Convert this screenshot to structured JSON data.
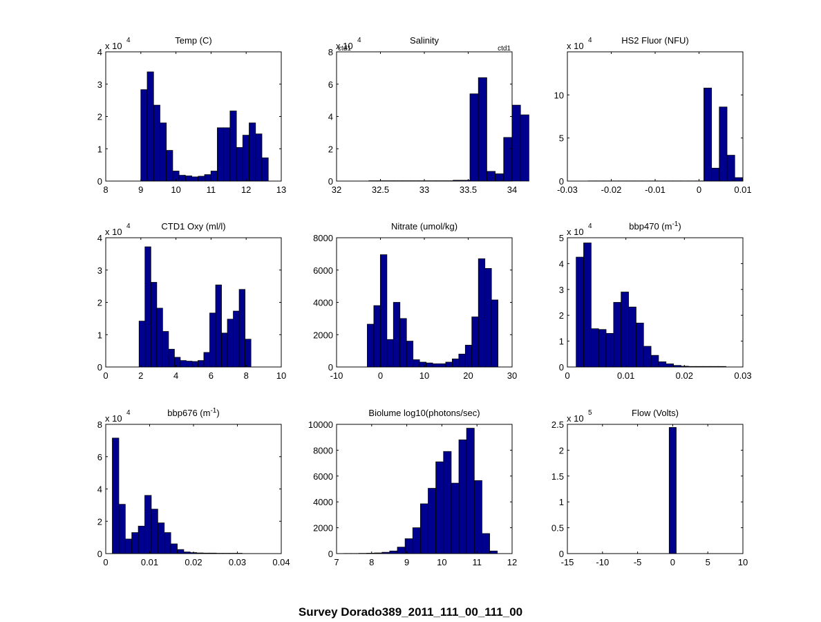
{
  "figure_title": "Survey Dorado389_2011_111_00_111_00",
  "style": {
    "bar_fill": "#00008f",
    "bar_edge": "#000000",
    "axis_color": "#000000",
    "background": "#ffffff"
  },
  "chart_data": [
    {
      "type": "bar",
      "title": "Temp (C)",
      "title_sup": "",
      "xlim": [
        8,
        13
      ],
      "xticks": [
        "8",
        "9",
        "10",
        "11",
        "12",
        "13"
      ],
      "ylim": [
        0,
        4
      ],
      "yticks": [
        "0",
        "1",
        "2",
        "3",
        "4"
      ],
      "exponent": "4",
      "bin_start": 9.0,
      "bin_width": 0.1815,
      "values": [
        2.83,
        3.38,
        2.35,
        1.8,
        0.95,
        0.31,
        0.18,
        0.16,
        0.13,
        0.15,
        0.2,
        0.31,
        1.65,
        1.65,
        2.17,
        1.04,
        1.42,
        1.8,
        1.46,
        0.72
      ],
      "annotations": []
    },
    {
      "type": "bar",
      "title": "Salinity",
      "title_sup": "",
      "xlim": [
        32,
        34
      ],
      "xticks": [
        "32",
        "32.5",
        "33",
        "33.5",
        "34"
      ],
      "ylim": [
        0,
        8
      ],
      "yticks": [
        "0",
        "2",
        "4",
        "6",
        "8"
      ],
      "exponent": "4",
      "bin_start": 32.08,
      "bin_width": 0.096,
      "values": [
        0,
        0,
        0,
        0.02,
        0.02,
        0.02,
        0.02,
        0.02,
        0.02,
        0.02,
        0.02,
        0.02,
        0.02,
        0.05,
        0.05,
        5.4,
        6.4,
        0.6,
        0.45,
        2.7,
        4.7,
        4.1
      ],
      "annotations": [
        "ctd1",
        "ctd1"
      ]
    },
    {
      "type": "bar",
      "title": "HS2 Fluor (NFU)",
      "title_sup": "",
      "xlim": [
        -0.03,
        0.01
      ],
      "xticks": [
        "-0.03",
        "-0.02",
        "-0.01",
        "0",
        "0.01"
      ],
      "ylim": [
        0,
        15
      ],
      "yticks": [
        "0",
        "5",
        "10"
      ],
      "exponent": "4",
      "bin_start": -0.0253,
      "bin_width": 0.00176,
      "values": [
        0.02,
        0.02,
        0.02,
        0.02,
        0.02,
        0.02,
        0.02,
        0.02,
        0.02,
        0.02,
        0.02,
        0.02,
        0.02,
        0.02,
        0.02,
        10.8,
        1.5,
        8.6,
        3.0,
        0.4
      ],
      "annotations": []
    },
    {
      "type": "bar",
      "title": "CTD1 Oxy (ml/l)",
      "title_sup": "",
      "xlim": [
        0,
        10
      ],
      "xticks": [
        "0",
        "2",
        "4",
        "6",
        "8",
        "10"
      ],
      "ylim": [
        0,
        4
      ],
      "yticks": [
        "0",
        "1",
        "2",
        "3",
        "4"
      ],
      "exponent": "4",
      "bin_start": 1.9,
      "bin_width": 0.3354,
      "values": [
        1.42,
        3.72,
        2.62,
        1.82,
        1.1,
        0.55,
        0.3,
        0.2,
        0.18,
        0.17,
        0.2,
        0.45,
        1.67,
        2.54,
        1.05,
        1.48,
        1.73,
        2.4,
        0.86
      ],
      "annotations": []
    },
    {
      "type": "bar",
      "title": "Nitrate (umol/kg)",
      "title_sup": "",
      "xlim": [
        -10,
        30
      ],
      "xticks": [
        "-10",
        "0",
        "10",
        "20",
        "30"
      ],
      "ylim": [
        0,
        8000
      ],
      "yticks": [
        "0",
        "2000",
        "4000",
        "6000",
        "8000"
      ],
      "exponent": "",
      "bin_start": -3.0,
      "bin_width": 1.4895,
      "values": [
        2650,
        3800,
        6950,
        1700,
        4000,
        3000,
        1600,
        450,
        300,
        250,
        200,
        200,
        300,
        500,
        800,
        1350,
        3100,
        6700,
        6100,
        4150
      ],
      "annotations": []
    },
    {
      "type": "bar",
      "title": "bbp470 (m",
      "title_sup": "-1",
      "title_tail": ")",
      "xlim": [
        0,
        0.03
      ],
      "xticks": [
        "0",
        "0.01",
        "0.02",
        "0.03"
      ],
      "ylim": [
        0,
        5
      ],
      "yticks": [
        "0",
        "1",
        "2",
        "3",
        "4",
        "5"
      ],
      "exponent": "4",
      "bin_start": 0.0015,
      "bin_width": 0.00128,
      "values": [
        4.25,
        4.8,
        1.48,
        1.45,
        1.3,
        2.5,
        2.9,
        2.32,
        1.7,
        0.8,
        0.45,
        0.2,
        0.12,
        0.06,
        0.03,
        0.02,
        0.02,
        0.02,
        0.02,
        0.02
      ],
      "annotations": []
    },
    {
      "type": "bar",
      "title": "bbp676 (m",
      "title_sup": "-1",
      "title_tail": ")",
      "xlim": [
        0,
        0.04
      ],
      "xticks": [
        "0",
        "0.01",
        "0.02",
        "0.03",
        "0.04"
      ],
      "ylim": [
        0,
        8
      ],
      "yticks": [
        "0",
        "2",
        "4",
        "6",
        "8"
      ],
      "exponent": "4",
      "bin_start": 0.0015,
      "bin_width": 0.00148,
      "values": [
        7.15,
        3.05,
        0.9,
        1.3,
        1.7,
        3.6,
        2.75,
        1.9,
        1.3,
        0.6,
        0.25,
        0.1,
        0.06,
        0.04,
        0.03,
        0.03,
        0.02,
        0.02,
        0.02,
        0.02
      ],
      "annotations": []
    },
    {
      "type": "bar",
      "title": "Biolume log10(photons/sec)",
      "title_sup": "",
      "xlim": [
        7,
        12
      ],
      "xticks": [
        "7",
        "8",
        "9",
        "10",
        "11",
        "12"
      ],
      "ylim": [
        0,
        10000
      ],
      "yticks": [
        "0",
        "2000",
        "4000",
        "6000",
        "8000",
        "10000"
      ],
      "exponent": "",
      "bin_start": 7.2,
      "bin_width": 0.219,
      "values": [
        10,
        10,
        20,
        30,
        50,
        100,
        200,
        500,
        1150,
        2000,
        3850,
        5050,
        7100,
        7900,
        5450,
        8800,
        9700,
        5650,
        1550,
        200
      ],
      "annotations": []
    },
    {
      "type": "bar",
      "title": "Flow (Volts)",
      "title_sup": "",
      "xlim": [
        -15,
        10
      ],
      "xticks": [
        "-15",
        "-10",
        "-5",
        "0",
        "5",
        "10"
      ],
      "ylim": [
        0,
        2.5
      ],
      "yticks": [
        "0",
        "0.5",
        "1",
        "1.5",
        "2",
        "2.5"
      ],
      "exponent": "5",
      "bin_start": -0.5,
      "bin_width": 1.0,
      "values": [
        2.44
      ],
      "annotations": []
    }
  ]
}
